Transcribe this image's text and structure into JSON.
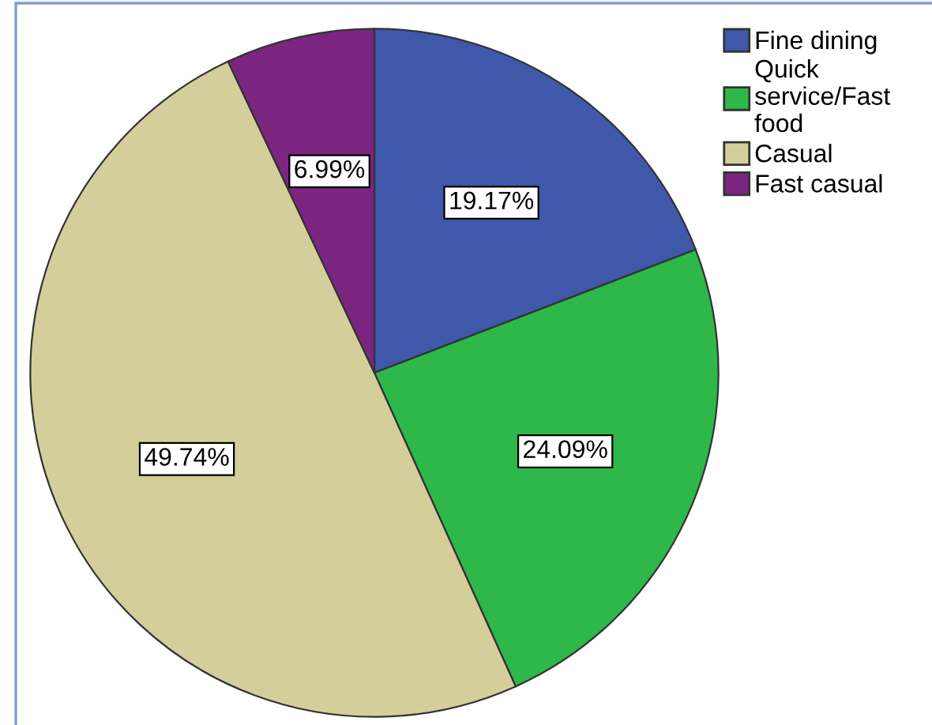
{
  "chart_data": {
    "type": "pie",
    "categories": [
      "Fine dining",
      "Quick\nservice/Fast\nfood",
      "Casual",
      "Fast casual"
    ],
    "values": [
      19.17,
      24.09,
      49.74,
      6.99
    ],
    "value_labels": [
      "19.17%",
      "24.09%",
      "49.74%",
      "6.99%"
    ],
    "colors": [
      "#3f58aa",
      "#2eb84a",
      "#d4cf9a",
      "#7b2580"
    ],
    "legend": "top right"
  }
}
